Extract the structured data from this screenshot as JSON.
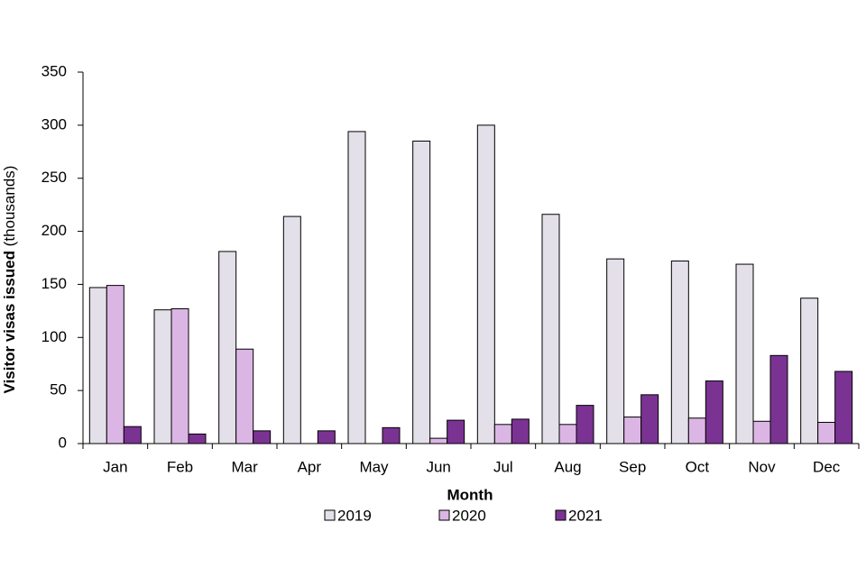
{
  "chart_data": {
    "type": "bar",
    "xlabel": "Month",
    "ylabel": "Visitor visas issued",
    "ylabel_unit": "(thousands)",
    "categories": [
      "Jan",
      "Feb",
      "Mar",
      "Apr",
      "May",
      "Jun",
      "Jul",
      "Aug",
      "Sep",
      "Oct",
      "Nov",
      "Dec"
    ],
    "series": [
      {
        "name": "2019",
        "color": "#e4e0e9",
        "values": [
          147,
          126,
          181,
          214,
          294,
          285,
          300,
          216,
          174,
          172,
          169,
          137
        ]
      },
      {
        "name": "2020",
        "color": "#dbb6e5",
        "values": [
          149,
          127,
          89,
          0,
          0,
          5,
          18,
          18,
          25,
          24,
          21,
          20
        ]
      },
      {
        "name": "2021",
        "color": "#7b3393",
        "values": [
          16,
          9,
          12,
          12,
          15,
          22,
          23,
          36,
          46,
          59,
          83,
          68
        ]
      }
    ],
    "ylim": [
      0,
      350
    ],
    "yticks": [
      0,
      50,
      100,
      150,
      200,
      250,
      300,
      350
    ],
    "grid": false,
    "legend": "bottom"
  }
}
